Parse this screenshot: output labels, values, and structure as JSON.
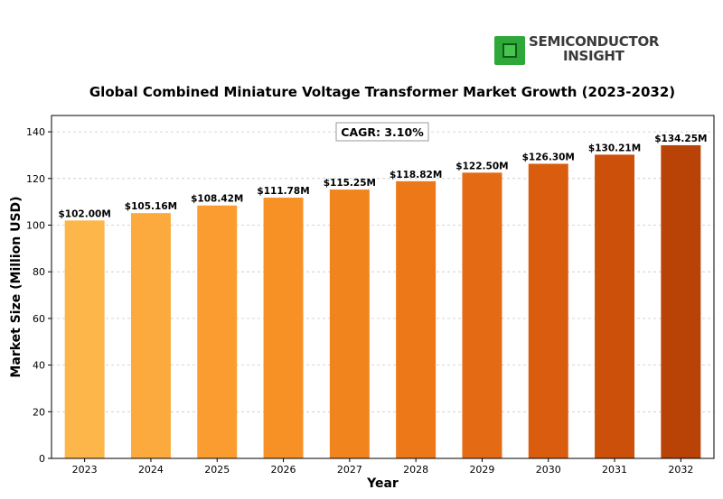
{
  "brand": {
    "line1": "SEMICONDUCTOR",
    "line2": "INSIGHT"
  },
  "chart_data": {
    "type": "bar",
    "title": "Global Combined Miniature Voltage Transformer Market Growth (2023-2032)",
    "xlabel": "Year",
    "ylabel": "Market Size (Million USD)",
    "annotation": "CAGR: 3.10%",
    "categories": [
      "2023",
      "2024",
      "2025",
      "2026",
      "2027",
      "2028",
      "2029",
      "2030",
      "2031",
      "2032"
    ],
    "values": [
      102.0,
      105.16,
      108.42,
      111.78,
      115.25,
      118.82,
      122.5,
      126.3,
      130.21,
      134.25
    ],
    "data_labels": [
      "$102.00M",
      "$105.16M",
      "$108.42M",
      "$111.78M",
      "$115.25M",
      "$118.82M",
      "$122.50M",
      "$126.30M",
      "$130.21M",
      "$134.25M"
    ],
    "yticks": [
      0,
      20,
      40,
      60,
      80,
      100,
      120,
      140
    ],
    "ylim": [
      0,
      147
    ],
    "grid": true,
    "colors": [
      "#fdb64a",
      "#fcaa3d",
      "#fa9c2f",
      "#f79126",
      "#f2841e",
      "#ec7817",
      "#e46a13",
      "#da5d0f",
      "#cc4f0a",
      "#b94206"
    ]
  }
}
